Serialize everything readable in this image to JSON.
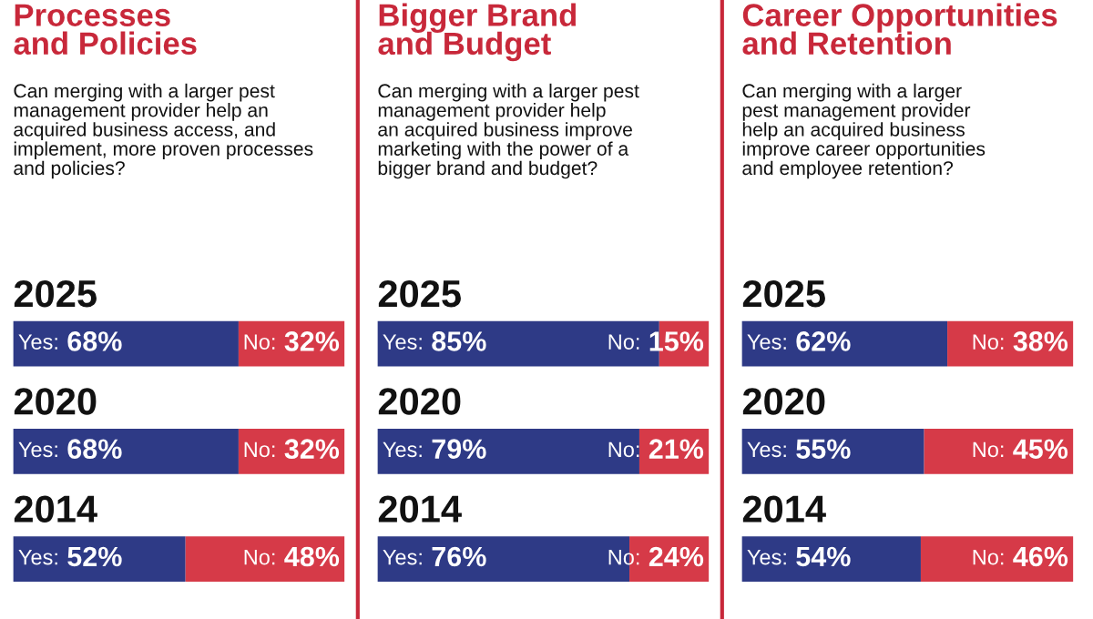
{
  "chart_data": [
    {
      "type": "bar",
      "orientation": "horizontal",
      "stacked": true,
      "title": "Processes\nand Policies",
      "subtitle": "Can merging with a larger pest\nmanagement provider help an\nacquired business access, and\nimplement, more proven processes\nand policies?",
      "categories": [
        "2025",
        "2020",
        "2014"
      ],
      "xlim": [
        0,
        100
      ],
      "tick_labels": false,
      "series": [
        {
          "name": "Yes:",
          "color": "#2e3a86",
          "values": [
            68,
            68,
            52
          ],
          "value_labels": [
            "68%",
            "68%",
            "52%"
          ]
        },
        {
          "name": "No:",
          "color": "#d63a48",
          "values": [
            32,
            32,
            48
          ],
          "value_labels": [
            "32%",
            "32%",
            "48%"
          ]
        }
      ]
    },
    {
      "type": "bar",
      "orientation": "horizontal",
      "stacked": true,
      "title": "Bigger Brand\nand Budget",
      "subtitle": "Can merging with a larger pest\nmanagement provider help\nan acquired business improve\nmarketing with the power of a\nbigger brand and budget?",
      "categories": [
        "2025",
        "2020",
        "2014"
      ],
      "xlim": [
        0,
        100
      ],
      "tick_labels": false,
      "series": [
        {
          "name": "Yes:",
          "color": "#2e3a86",
          "values": [
            85,
            79,
            76
          ],
          "value_labels": [
            "85%",
            "79%",
            "76%"
          ]
        },
        {
          "name": "No:",
          "color": "#d63a48",
          "values": [
            15,
            21,
            24
          ],
          "value_labels": [
            "15%",
            "21%",
            "24%"
          ]
        }
      ]
    },
    {
      "type": "bar",
      "orientation": "horizontal",
      "stacked": true,
      "title": "Career Opportunities\nand Retention",
      "subtitle": "Can merging with a larger\npest management provider\nhelp an acquired business\nimprove career opportunities\nand employee retention?",
      "categories": [
        "2025",
        "2020",
        "2014"
      ],
      "xlim": [
        0,
        100
      ],
      "tick_labels": false,
      "series": [
        {
          "name": "Yes:",
          "color": "#2e3a86",
          "values": [
            62,
            55,
            54
          ],
          "value_labels": [
            "62%",
            "55%",
            "54%"
          ]
        },
        {
          "name": "No:",
          "color": "#d63a48",
          "values": [
            38,
            45,
            46
          ],
          "value_labels": [
            "38%",
            "45%",
            "46%"
          ]
        }
      ]
    }
  ]
}
